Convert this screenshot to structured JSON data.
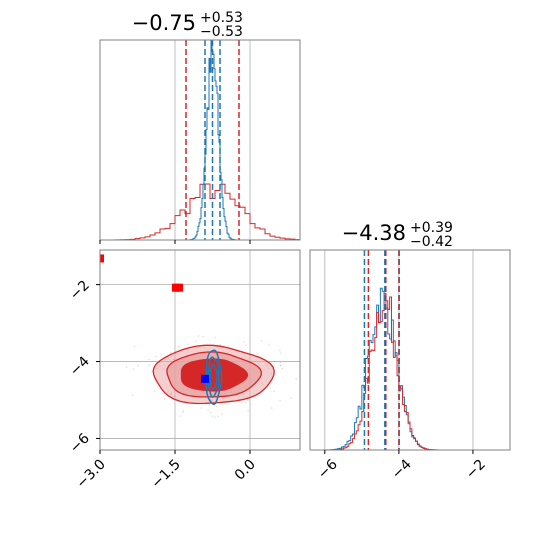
{
  "chart_data": {
    "type": "corner",
    "grid": true,
    "colors": {
      "series_a": "#1f77b4",
      "series_b": "#d62728",
      "contour_b_fill": "#e8a0a0",
      "marker_red": "#ff0000",
      "marker_blue": "#0000ff",
      "grid": "#b0b0b0",
      "axes": "#808080"
    },
    "titles": {
      "param_1": {
        "median": "−0.75",
        "plus": "+0.53",
        "minus": "−0.53"
      },
      "param_2": {
        "median": "−4.38",
        "plus": "+0.39",
        "minus": "−0.42"
      }
    },
    "param_1_axis": {
      "range": [
        -3.0,
        1.0
      ],
      "ticks": [
        -3.0,
        -1.5,
        0.0
      ],
      "tick_labels": [
        "−3.0",
        "−1.5",
        "0.0"
      ]
    },
    "param_2_axis": {
      "range": [
        -6.4,
        -1.0
      ],
      "ticks": [
        -6,
        -4,
        -2
      ],
      "tick_labels": [
        "−6",
        "−4",
        "−2"
      ],
      "y_range": [
        -6.3,
        -1.1
      ]
    },
    "hist_param_1": {
      "series_a": {
        "center": -0.75,
        "sigma": 0.12,
        "quantiles": [
          -0.9,
          -0.75,
          -0.6
        ]
      },
      "series_b": {
        "center": -0.75,
        "sigma": 0.55,
        "quantiles": [
          -1.28,
          -0.22
        ]
      }
    },
    "hist_param_2": {
      "series_a": {
        "center": -4.45,
        "sigma": 0.38,
        "quantiles": [
          -4.93,
          -4.38,
          -4.0
        ]
      },
      "series_b": {
        "center": -4.4,
        "sigma": 0.36,
        "quantiles": [
          -4.85,
          -4.38,
          -4.02
        ]
      }
    },
    "joint": {
      "series_b_center": [
        -0.75,
        -4.35
      ],
      "series_b_extent": [
        1.2,
        0.75
      ],
      "series_a_center": [
        -0.73,
        -4.4
      ],
      "series_a_extent": [
        0.15,
        0.7
      ],
      "red_markers": [
        [
          -3.0,
          -1.32
        ],
        [
          -1.48,
          -2.08
        ],
        [
          -1.42,
          -2.08
        ]
      ],
      "blue_marker": [
        -0.9,
        -4.45
      ]
    }
  }
}
